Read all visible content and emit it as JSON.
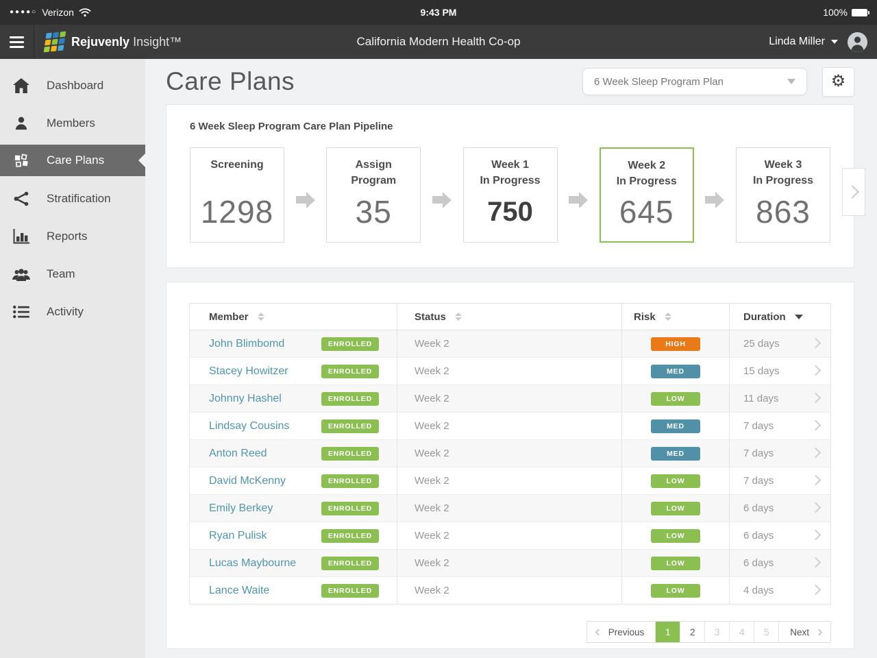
{
  "status_bar": {
    "signal_dots": "●●●●○",
    "carrier": "Verizon",
    "time": "9:43 PM",
    "battery": "100%"
  },
  "header": {
    "brand_bold": "Rejuvenly",
    "brand_regular": "Insight™",
    "org_title": "California Modern Health Co-op",
    "user_name": "Linda Miller"
  },
  "sidebar": {
    "items": [
      {
        "label": "Dashboard",
        "icon": "home",
        "active": false
      },
      {
        "label": "Members",
        "icon": "person",
        "active": false
      },
      {
        "label": "Care Plans",
        "icon": "tiles",
        "active": true
      },
      {
        "label": "Stratification",
        "icon": "share-network",
        "active": false
      },
      {
        "label": "Reports",
        "icon": "bar-chart",
        "active": false
      },
      {
        "label": "Team",
        "icon": "people-group",
        "active": false
      },
      {
        "label": "Activity",
        "icon": "bullet-list",
        "active": false
      }
    ]
  },
  "page": {
    "title": "Care Plans",
    "plan_dropdown_value": "6 Week Sleep Program Plan"
  },
  "pipeline": {
    "title": "6 Week Sleep Program Care Plan Pipeline",
    "stages": [
      {
        "label_line1": "Screening",
        "label_line2": "",
        "value": "1298",
        "bold_value": false,
        "selected": false
      },
      {
        "label_line1": "Assign",
        "label_line2": "Program",
        "value": "35",
        "bold_value": false,
        "selected": false
      },
      {
        "label_line1": "Week 1",
        "label_line2": "In Progress",
        "value": "750",
        "bold_value": true,
        "selected": false
      },
      {
        "label_line1": "Week 2",
        "label_line2": "In Progress",
        "value": "645",
        "bold_value": false,
        "selected": true
      },
      {
        "label_line1": "Week 3",
        "label_line2": "In Progress",
        "value": "863",
        "bold_value": false,
        "selected": false
      }
    ]
  },
  "table": {
    "columns": {
      "member": "Member",
      "status": "Status",
      "risk": "Risk",
      "duration": "Duration"
    },
    "rows": [
      {
        "name": "John Blimbomd",
        "badge": "ENROLLED",
        "status": "Week 2",
        "risk": "HIGH",
        "duration": "25 days"
      },
      {
        "name": "Stacey Howitzer",
        "badge": "ENROLLED",
        "status": "Week 2",
        "risk": "MED",
        "duration": "15 days"
      },
      {
        "name": "Johnny Hashel",
        "badge": "ENROLLED",
        "status": "Week 2",
        "risk": "LOW",
        "duration": "11 days"
      },
      {
        "name": "Lindsay Cousins",
        "badge": "ENROLLED",
        "status": "Week 2",
        "risk": "MED",
        "duration": "7 days"
      },
      {
        "name": "Anton Reed",
        "badge": "ENROLLED",
        "status": "Week 2",
        "risk": "MED",
        "duration": "7 days"
      },
      {
        "name": "David McKenny",
        "badge": "ENROLLED",
        "status": "Week 2",
        "risk": "LOW",
        "duration": "7 days"
      },
      {
        "name": "Emily Berkey",
        "badge": "ENROLLED",
        "status": "Week 2",
        "risk": "LOW",
        "duration": "6 days"
      },
      {
        "name": "Ryan Pulisk",
        "badge": "ENROLLED",
        "status": "Week 2",
        "risk": "LOW",
        "duration": "6 days"
      },
      {
        "name": "Lucas Maybourne",
        "badge": "ENROLLED",
        "status": "Week 2",
        "risk": "LOW",
        "duration": "6 days"
      },
      {
        "name": "Lance Waite",
        "badge": "ENROLLED",
        "status": "Week 2",
        "risk": "LOW",
        "duration": "4 days"
      }
    ]
  },
  "pagination": {
    "previous_label": "Previous",
    "next_label": "Next",
    "pages": [
      "1",
      "2",
      "3",
      "4",
      "5"
    ],
    "active_page": "1"
  },
  "colors": {
    "accent_green": "#8cbf52",
    "risk_high_orange": "#e87b17",
    "risk_med_teal": "#5191a8",
    "link_blue": "#4f96ad",
    "header_dark": "#3b3b3b",
    "sidebar_gray": "#e8e8e8",
    "logo_palette": [
      "#49a7dd",
      "#2e7fc2",
      "#8cc63f",
      "#f2b71c",
      "#a6ce39"
    ]
  }
}
